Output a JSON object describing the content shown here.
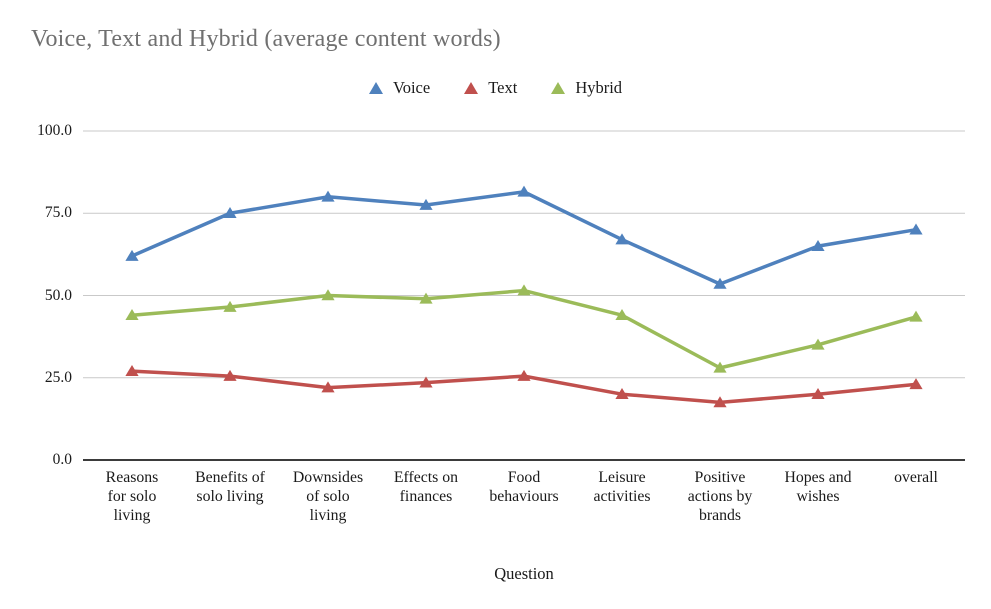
{
  "title": "Voice, Text and Hybrid (average content words)",
  "chart_data": {
    "type": "line",
    "title": "Voice, Text and Hybrid (average content words)",
    "categories": [
      "Reasons for solo living",
      "Benefits of solo living",
      "Downsides of solo living",
      "Effects on finances",
      "Food behaviours",
      "Leisure activities",
      "Positive actions by brands",
      "Hopes and wishes",
      "overall"
    ],
    "category_lines": [
      [
        "Reasons",
        "for solo",
        "living"
      ],
      [
        "Benefits of",
        "solo living"
      ],
      [
        "Downsides",
        "of solo",
        "living"
      ],
      [
        "Effects on",
        "finances"
      ],
      [
        "Food",
        "behaviours"
      ],
      [
        "Leisure",
        "activities"
      ],
      [
        "Positive",
        "actions by",
        "brands"
      ],
      [
        "Hopes and",
        "wishes"
      ],
      [
        "overall"
      ]
    ],
    "series": [
      {
        "name": "Voice",
        "color": "#4F81BD",
        "values": [
          62,
          75,
          80,
          77.5,
          81.5,
          67,
          53.5,
          65,
          70
        ]
      },
      {
        "name": "Text",
        "color": "#C0504D",
        "values": [
          27,
          25.5,
          22,
          23.5,
          25.5,
          20,
          17.5,
          20,
          23
        ]
      },
      {
        "name": "Hybrid",
        "color": "#9BBB59",
        "values": [
          44,
          46.5,
          50,
          49,
          51.5,
          44,
          28,
          35,
          43.5
        ]
      }
    ],
    "xlabel": "Question",
    "ylabel": "",
    "ylim": [
      0,
      100
    ],
    "yticks": [
      0,
      25,
      50,
      75,
      100
    ],
    "ytick_labels": [
      "0.0",
      "25.0",
      "50.0",
      "75.0",
      "100.0"
    ],
    "grid": true,
    "legend_position": "top",
    "marker": "triangle"
  },
  "colors": {
    "title_text": "#707070",
    "gridline": "#c9c9c9",
    "axis_line": "#3b3b3b",
    "tick_text": "#1a1a1a"
  }
}
